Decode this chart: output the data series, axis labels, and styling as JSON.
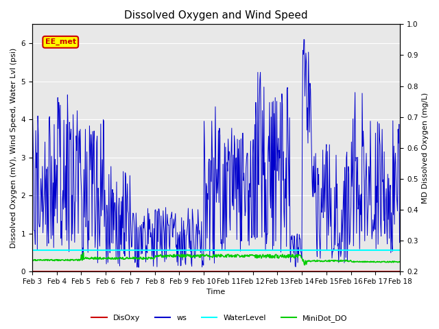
{
  "title": "Dissolved Oxygen and Wind Speed",
  "xlabel": "Time",
  "ylabel_left": "Dissolved Oxygen (mV), Wind Speed, Water Lvl (psi)",
  "ylabel_right": "MD Dissolved Oxygen (mg/L)",
  "ylim_left": [
    0.0,
    6.5
  ],
  "ylim_right": [
    0.2,
    1.0
  ],
  "annotation_text": "EE_met",
  "annotation_facecolor": "yellow",
  "annotation_edgecolor": "#cc0000",
  "xtick_labels": [
    "Feb 3",
    "Feb 4",
    "Feb 5",
    "Feb 6",
    "Feb 7",
    "Feb 8",
    "Feb 9",
    "Feb 10",
    "Feb 11",
    "Feb 12",
    "Feb 13",
    "Feb 14",
    "Feb 15",
    "Feb 16",
    "Feb 17",
    "Feb 18"
  ],
  "background_color": "#e8e8e8",
  "grid_color": "white",
  "ws_color": "#0000cc",
  "disoxy_color": "#cc0000",
  "waterlevel_color": "cyan",
  "minidot_color": "#00cc00",
  "legend_labels": [
    "DisOxy",
    "ws",
    "WaterLevel",
    "MiniDot_DO"
  ],
  "title_fontsize": 11,
  "axis_label_fontsize": 8,
  "tick_fontsize": 7.5
}
